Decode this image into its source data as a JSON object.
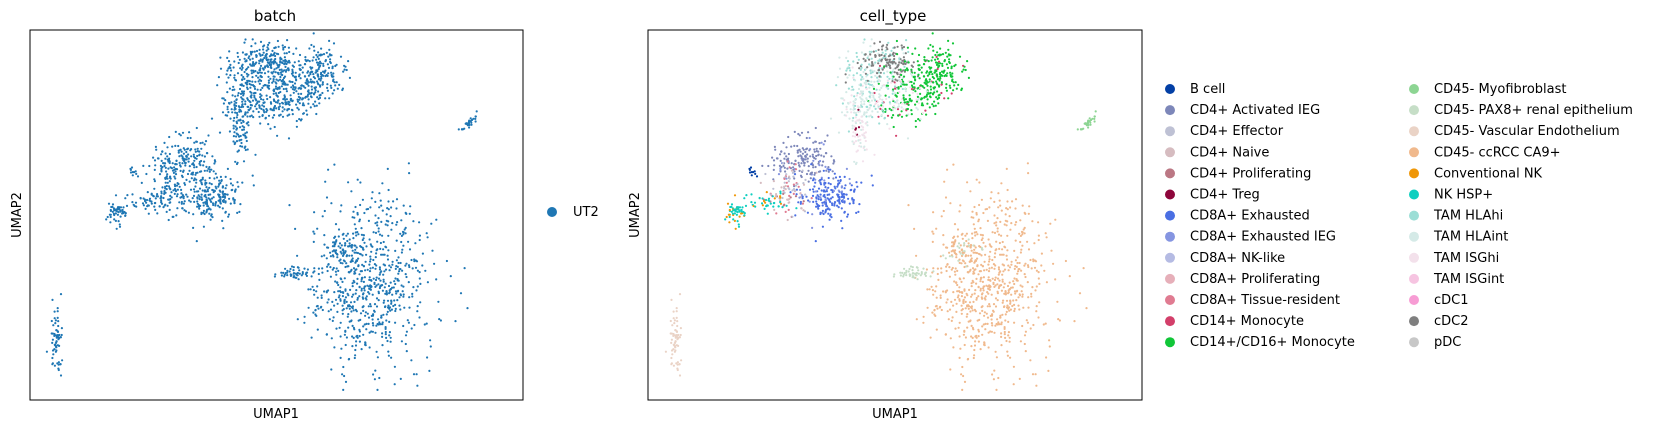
{
  "chart_data": [
    {
      "type": "scatter",
      "title": "batch",
      "xlabel": "UMAP1",
      "ylabel": "UMAP2",
      "ticks": "none",
      "legend_placement": "right",
      "legend": [
        {
          "label": "UT2",
          "color": "#1f77b4"
        }
      ],
      "point_color": "#1f77b4",
      "approx_points_per_cluster": "dense"
    },
    {
      "type": "scatter",
      "title": "cell_type",
      "xlabel": "UMAP1",
      "ylabel": "UMAP2",
      "ticks": "none",
      "legend_placement": "right",
      "legend_columns": 2,
      "legend": [
        {
          "label": "B cell",
          "color": "#023fa5"
        },
        {
          "label": "CD4+ Activated IEG",
          "color": "#7d87b9"
        },
        {
          "label": "CD4+ Effector",
          "color": "#bec1d4"
        },
        {
          "label": "CD4+ Naive",
          "color": "#d6bcc0"
        },
        {
          "label": "CD4+ Proliferating",
          "color": "#bb7784"
        },
        {
          "label": "CD4+ Treg",
          "color": "#8e063b"
        },
        {
          "label": "CD8A+ Exhausted",
          "color": "#4a6fe3"
        },
        {
          "label": "CD8A+ Exhausted IEG",
          "color": "#8595e1"
        },
        {
          "label": "CD8A+ NK-like",
          "color": "#b5bbe3"
        },
        {
          "label": "CD8A+ Proliferating",
          "color": "#e6afb9"
        },
        {
          "label": "CD8A+ Tissue-resident",
          "color": "#e07b91"
        },
        {
          "label": "CD14+ Monocyte",
          "color": "#d33f6a"
        },
        {
          "label": "CD14+/CD16+ Monocyte",
          "color": "#11c638"
        },
        {
          "label": "CD45- Myofibroblast",
          "color": "#8dd593"
        },
        {
          "label": "CD45- PAX8+ renal epithelium",
          "color": "#c6dec7"
        },
        {
          "label": "CD45- Vascular Endothelium",
          "color": "#ead3c6"
        },
        {
          "label": "CD45- ccRCC CA9+",
          "color": "#f0b98d"
        },
        {
          "label": "Conventional NK",
          "color": "#ef9708"
        },
        {
          "label": "NK HSP+",
          "color": "#0fcfc0"
        },
        {
          "label": "TAM HLAhi",
          "color": "#9cded6"
        },
        {
          "label": "TAM HLAint",
          "color": "#d5eae7"
        },
        {
          "label": "TAM ISGhi",
          "color": "#f3e1eb"
        },
        {
          "label": "TAM ISGint",
          "color": "#f6c4e1"
        },
        {
          "label": "cDC1",
          "color": "#f79cd4"
        },
        {
          "label": "cDC2",
          "color": "#7f7f7f"
        },
        {
          "label": "pDC",
          "color": "#c7c7c7"
        }
      ]
    }
  ]
}
